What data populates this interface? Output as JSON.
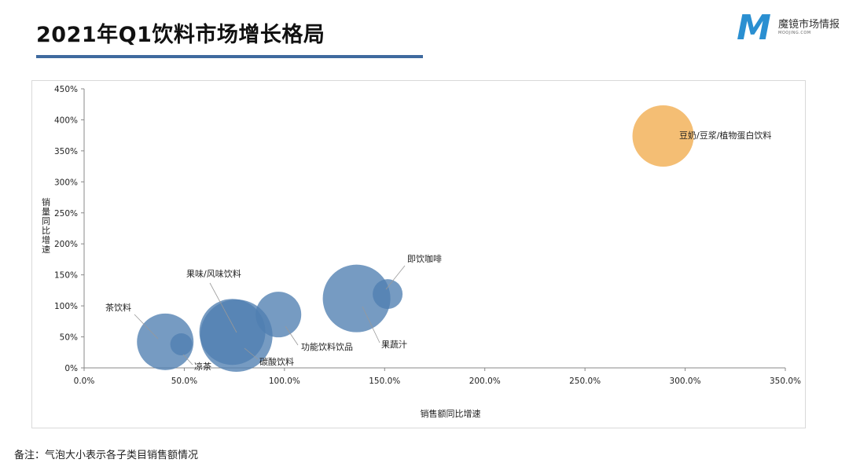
{
  "header": {
    "title": "2021年Q1饮料市场增长格局"
  },
  "logo": {
    "name": "魔镜市场情报",
    "sub": "MOOJING.COM",
    "mark": "M"
  },
  "footnote": "备注：气泡大小表示各子类目销售额情况",
  "colors": {
    "accent": "#3f6a9f",
    "bubble_blue": "#4f7fb1",
    "bubble_orange": "#f3b868",
    "logo_blue": "#2a8fd1"
  },
  "chart_data": {
    "type": "scatter",
    "variant": "bubble",
    "title": "",
    "xlabel": "销售额同比增速",
    "ylabel": "销量同比增速",
    "xlim": [
      0,
      350
    ],
    "ylim": [
      0,
      450
    ],
    "x_ticks": [
      "0.0%",
      "50.0%",
      "100.0%",
      "150.0%",
      "200.0%",
      "250.0%",
      "300.0%",
      "350.0%"
    ],
    "y_ticks": [
      "0%",
      "50%",
      "100%",
      "150%",
      "200%",
      "250%",
      "300%",
      "350%",
      "400%",
      "450%"
    ],
    "size_meaning": "销售额",
    "series": [
      {
        "name": "茶饮料",
        "x": 40.5,
        "y": 42,
        "size": 36,
        "color": "blue"
      },
      {
        "name": "凉茶",
        "x": 48.5,
        "y": 38,
        "size": 14,
        "color": "blue"
      },
      {
        "name": "果味/风味饮料",
        "x": 74,
        "y": 58,
        "size": 42,
        "color": "blue"
      },
      {
        "name": "碳酸饮料",
        "x": 76,
        "y": 52,
        "size": 46,
        "color": "blue"
      },
      {
        "name": "功能饮料饮品",
        "x": 97,
        "y": 86,
        "size": 29,
        "color": "blue"
      },
      {
        "name": "果蔬汁",
        "x": 136,
        "y": 112,
        "size": 43,
        "color": "blue"
      },
      {
        "name": "即饮咖啡",
        "x": 151.5,
        "y": 119,
        "size": 19,
        "color": "blue"
      },
      {
        "name": "豆奶/豆浆/植物蛋白饮料",
        "x": 289,
        "y": 374,
        "size": 39,
        "color": "orange"
      }
    ]
  }
}
